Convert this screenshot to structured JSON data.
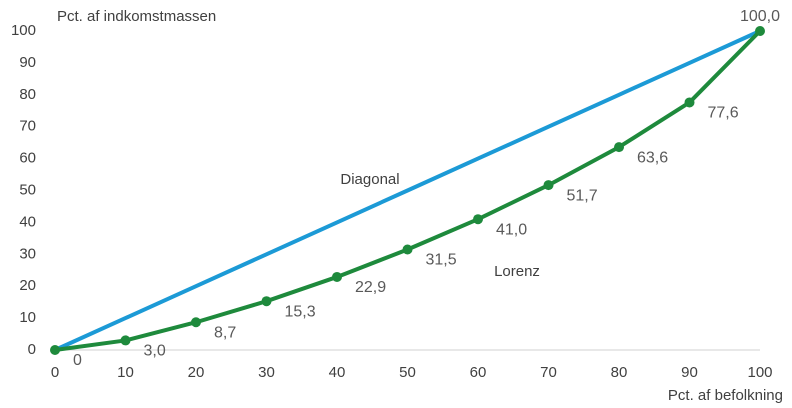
{
  "chart_data": {
    "type": "line",
    "y_label": "Pct. af indkomstmassen",
    "x_label": "Pct. af befolkning",
    "x": [
      0,
      10,
      20,
      30,
      40,
      50,
      60,
      70,
      80,
      90,
      100
    ],
    "series": [
      {
        "name": "Diagonal",
        "color": "#1c9ad6",
        "marker": false,
        "values": [
          0,
          10,
          20,
          30,
          40,
          50,
          60,
          70,
          80,
          90,
          100
        ]
      },
      {
        "name": "Lorenz",
        "color": "#1e8a3c",
        "marker": true,
        "values": [
          0,
          3.0,
          8.7,
          15.3,
          22.9,
          31.5,
          41.0,
          51.7,
          63.6,
          77.6,
          100.0
        ],
        "value_labels": [
          "0",
          "3,0",
          "8,7",
          "15,3",
          "22,9",
          "31,5",
          "41,0",
          "51,7",
          "63,6",
          "77,6",
          "100,0"
        ]
      }
    ],
    "xlim": [
      0,
      100
    ],
    "xticks": [
      0,
      10,
      20,
      30,
      40,
      50,
      60,
      70,
      80,
      90,
      100
    ],
    "ylim": [
      0,
      100
    ],
    "yticks": [
      0,
      10,
      20,
      30,
      40,
      50,
      60,
      70,
      80,
      90,
      100
    ],
    "grid": false
  }
}
